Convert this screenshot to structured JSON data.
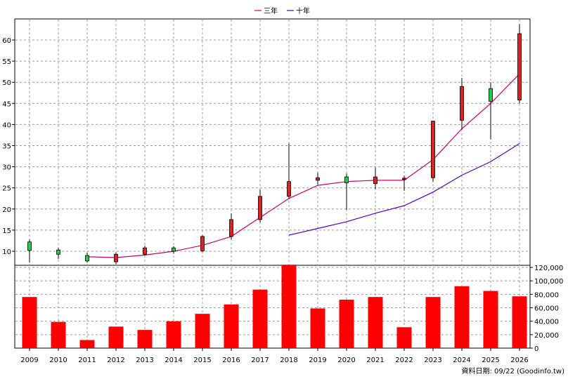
{
  "legend": {
    "ma3_label": "三年",
    "ma10_label": "十年"
  },
  "footer": "資料日期: 09/22 (Goodinfo.tw)",
  "colors": {
    "up_candle": "#dd2222",
    "down_candle": "#22cc44",
    "ma3_line": "#cc0066",
    "ma10_line": "#5500bb",
    "volume_bar": "#ff0000",
    "grid": "#999999"
  },
  "chart_data": [
    {
      "type": "candlestick",
      "x_ticks": [
        "2009",
        "2010",
        "2011",
        "2012",
        "2013",
        "2014",
        "2015",
        "2016",
        "2017",
        "2018",
        "2019",
        "2020",
        "2021",
        "2022",
        "2023",
        "2024",
        "2025",
        "2026"
      ],
      "y_ticks": [
        "10",
        "15",
        "20",
        "25",
        "30",
        "35",
        "40",
        "45",
        "50",
        "55",
        "60"
      ],
      "ylim": [
        7,
        65
      ],
      "y_axis_side": "left",
      "grid": true,
      "legend_position": "top-center",
      "candles": [
        {
          "x": "2009",
          "open": 10.2,
          "close": 12.2,
          "high": 12.8,
          "low": 7.3
        },
        {
          "x": "2010",
          "open": 9.3,
          "close": 10.3,
          "high": 10.8,
          "low": 8.2
        },
        {
          "x": "2011",
          "open": 7.7,
          "close": 9.0,
          "high": 9.6,
          "low": 7.3
        },
        {
          "x": "2012",
          "open": 9.3,
          "close": 7.5,
          "high": 9.7,
          "low": 6.9
        },
        {
          "x": "2013",
          "open": 10.8,
          "close": 9.3,
          "high": 11.3,
          "low": 9.0
        },
        {
          "x": "2014",
          "open": 10.0,
          "close": 10.8,
          "high": 11.2,
          "low": 9.4
        },
        {
          "x": "2015",
          "open": 13.5,
          "close": 10.1,
          "high": 13.8,
          "low": 9.8
        },
        {
          "x": "2016",
          "open": 17.5,
          "close": 13.5,
          "high": 19.0,
          "low": 12.8
        },
        {
          "x": "2017",
          "open": 23.0,
          "close": 17.5,
          "high": 24.6,
          "low": 16.8
        },
        {
          "x": "2018",
          "open": 26.5,
          "close": 23.0,
          "high": 35.5,
          "low": 22.4
        },
        {
          "x": "2019",
          "open": 27.4,
          "close": 26.8,
          "high": 28.6,
          "low": 25.8
        },
        {
          "x": "2020",
          "open": 26.2,
          "close": 27.6,
          "high": 28.4,
          "low": 19.8
        },
        {
          "x": "2021",
          "open": 27.6,
          "close": 26.0,
          "high": 29.8,
          "low": 24.7
        },
        {
          "x": "2022",
          "open": 27.3,
          "close": 27.0,
          "high": 27.9,
          "low": 24.3
        },
        {
          "x": "2023",
          "open": 40.8,
          "close": 27.4,
          "high": 40.9,
          "low": 26.4
        },
        {
          "x": "2024",
          "open": 49.0,
          "close": 41.0,
          "high": 51.0,
          "low": 38.8
        },
        {
          "x": "2025",
          "open": 45.5,
          "close": 48.5,
          "high": 50.0,
          "low": 36.5
        },
        {
          "x": "2026",
          "open": 61.5,
          "close": 45.8,
          "high": 63.8,
          "low": 45.0
        }
      ],
      "series": [
        {
          "name": "三年",
          "x": [
            "2011",
            "2012",
            "2013",
            "2014",
            "2015",
            "2016",
            "2017",
            "2018",
            "2019",
            "2020",
            "2021",
            "2022",
            "2023",
            "2024",
            "2025",
            "2026"
          ],
          "values": [
            8.7,
            8.5,
            9.1,
            10.0,
            11.4,
            13.5,
            18.0,
            22.5,
            25.6,
            26.5,
            26.8,
            26.8,
            31.7,
            39.0,
            45.0,
            52.0
          ]
        },
        {
          "name": "十年",
          "x": [
            "2018",
            "2019",
            "2020",
            "2021",
            "2022",
            "2023",
            "2024",
            "2025",
            "2026"
          ],
          "values": [
            13.8,
            15.4,
            17.0,
            19.0,
            20.8,
            24.0,
            28.0,
            31.2,
            35.5
          ]
        }
      ]
    },
    {
      "type": "bar",
      "categories": [
        "2009",
        "2010",
        "2011",
        "2012",
        "2013",
        "2014",
        "2015",
        "2016",
        "2017",
        "2018",
        "2019",
        "2020",
        "2021",
        "2022",
        "2023",
        "2024",
        "2025",
        "2026"
      ],
      "values": [
        76000,
        39000,
        12000,
        32000,
        27000,
        40000,
        51000,
        65000,
        87000,
        124000,
        59000,
        72000,
        76000,
        31000,
        76000,
        92000,
        85000,
        77000
      ],
      "y_ticks": [
        "0",
        "20,000",
        "40,000",
        "60,000",
        "80,000",
        "100,000",
        "120,000"
      ],
      "ylim": [
        0,
        120000
      ],
      "y_axis_side": "right",
      "grid": true
    }
  ]
}
